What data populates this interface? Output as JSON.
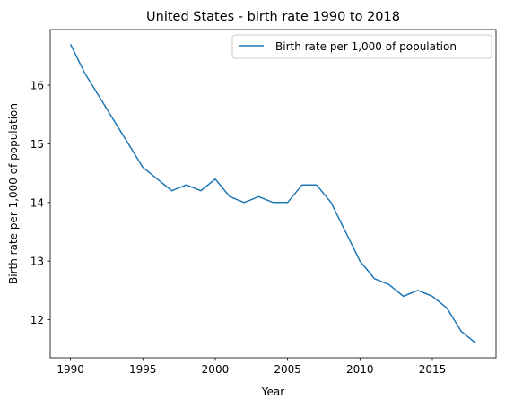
{
  "chart_data": {
    "type": "line",
    "title": "United States - birth rate 1990 to 2018",
    "xlabel": "Year",
    "ylabel": "Birth rate per 1,000 of population",
    "xlim": [
      1988.6,
      2019.4
    ],
    "ylim": [
      11.35,
      16.95
    ],
    "xticks": [
      1990,
      1995,
      2000,
      2005,
      2010,
      2015
    ],
    "yticks": [
      12,
      13,
      14,
      15,
      16
    ],
    "legend_position": "top-right",
    "grid": false,
    "series": [
      {
        "name": "Birth rate per 1,000 of population",
        "color": "#1f77b4",
        "x": [
          1990,
          1991,
          1992,
          1993,
          1994,
          1995,
          1996,
          1997,
          1998,
          1999,
          2000,
          2001,
          2002,
          2003,
          2004,
          2005,
          2006,
          2007,
          2008,
          2009,
          2010,
          2011,
          2012,
          2013,
          2014,
          2015,
          2016,
          2017,
          2018
        ],
        "y": [
          16.7,
          16.2,
          15.8,
          15.4,
          15.0,
          14.6,
          14.4,
          14.2,
          14.3,
          14.2,
          14.4,
          14.1,
          14.0,
          14.1,
          14.0,
          14.0,
          14.3,
          14.3,
          14.0,
          13.5,
          13.0,
          12.7,
          12.6,
          12.4,
          12.5,
          12.4,
          12.2,
          11.8,
          11.6
        ]
      }
    ]
  }
}
